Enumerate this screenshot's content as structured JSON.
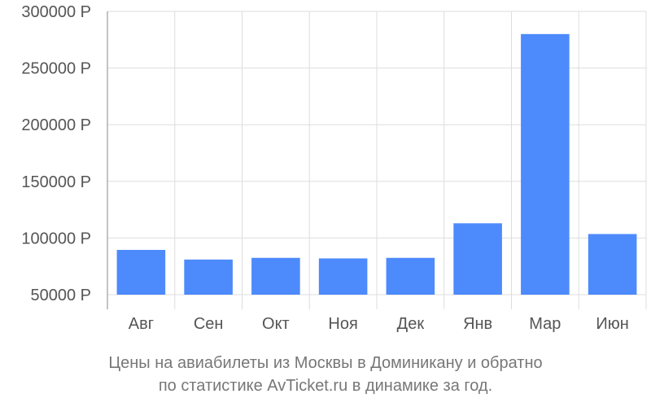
{
  "chart_data": {
    "type": "bar",
    "categories": [
      "Авг",
      "Сен",
      "Окт",
      "Ноя",
      "Дек",
      "Янв",
      "Мар",
      "Июн"
    ],
    "values": [
      89500,
      81000,
      82500,
      82000,
      82500,
      113000,
      280000,
      103500
    ],
    "y_ticks": [
      "300000 Р",
      "250000 Р",
      "200000 Р",
      "150000 Р",
      "100000 Р",
      "50000 Р"
    ],
    "y_tick_values": [
      300000,
      250000,
      200000,
      150000,
      100000,
      50000
    ],
    "ylim": [
      50000,
      300000
    ],
    "grid": true,
    "bar_color": "#4d8afc",
    "caption": [
      "Цены на авиабилеты из Москвы в Доминикану и обратно",
      "по статистике AvTicket.ru в динамике за год."
    ]
  }
}
